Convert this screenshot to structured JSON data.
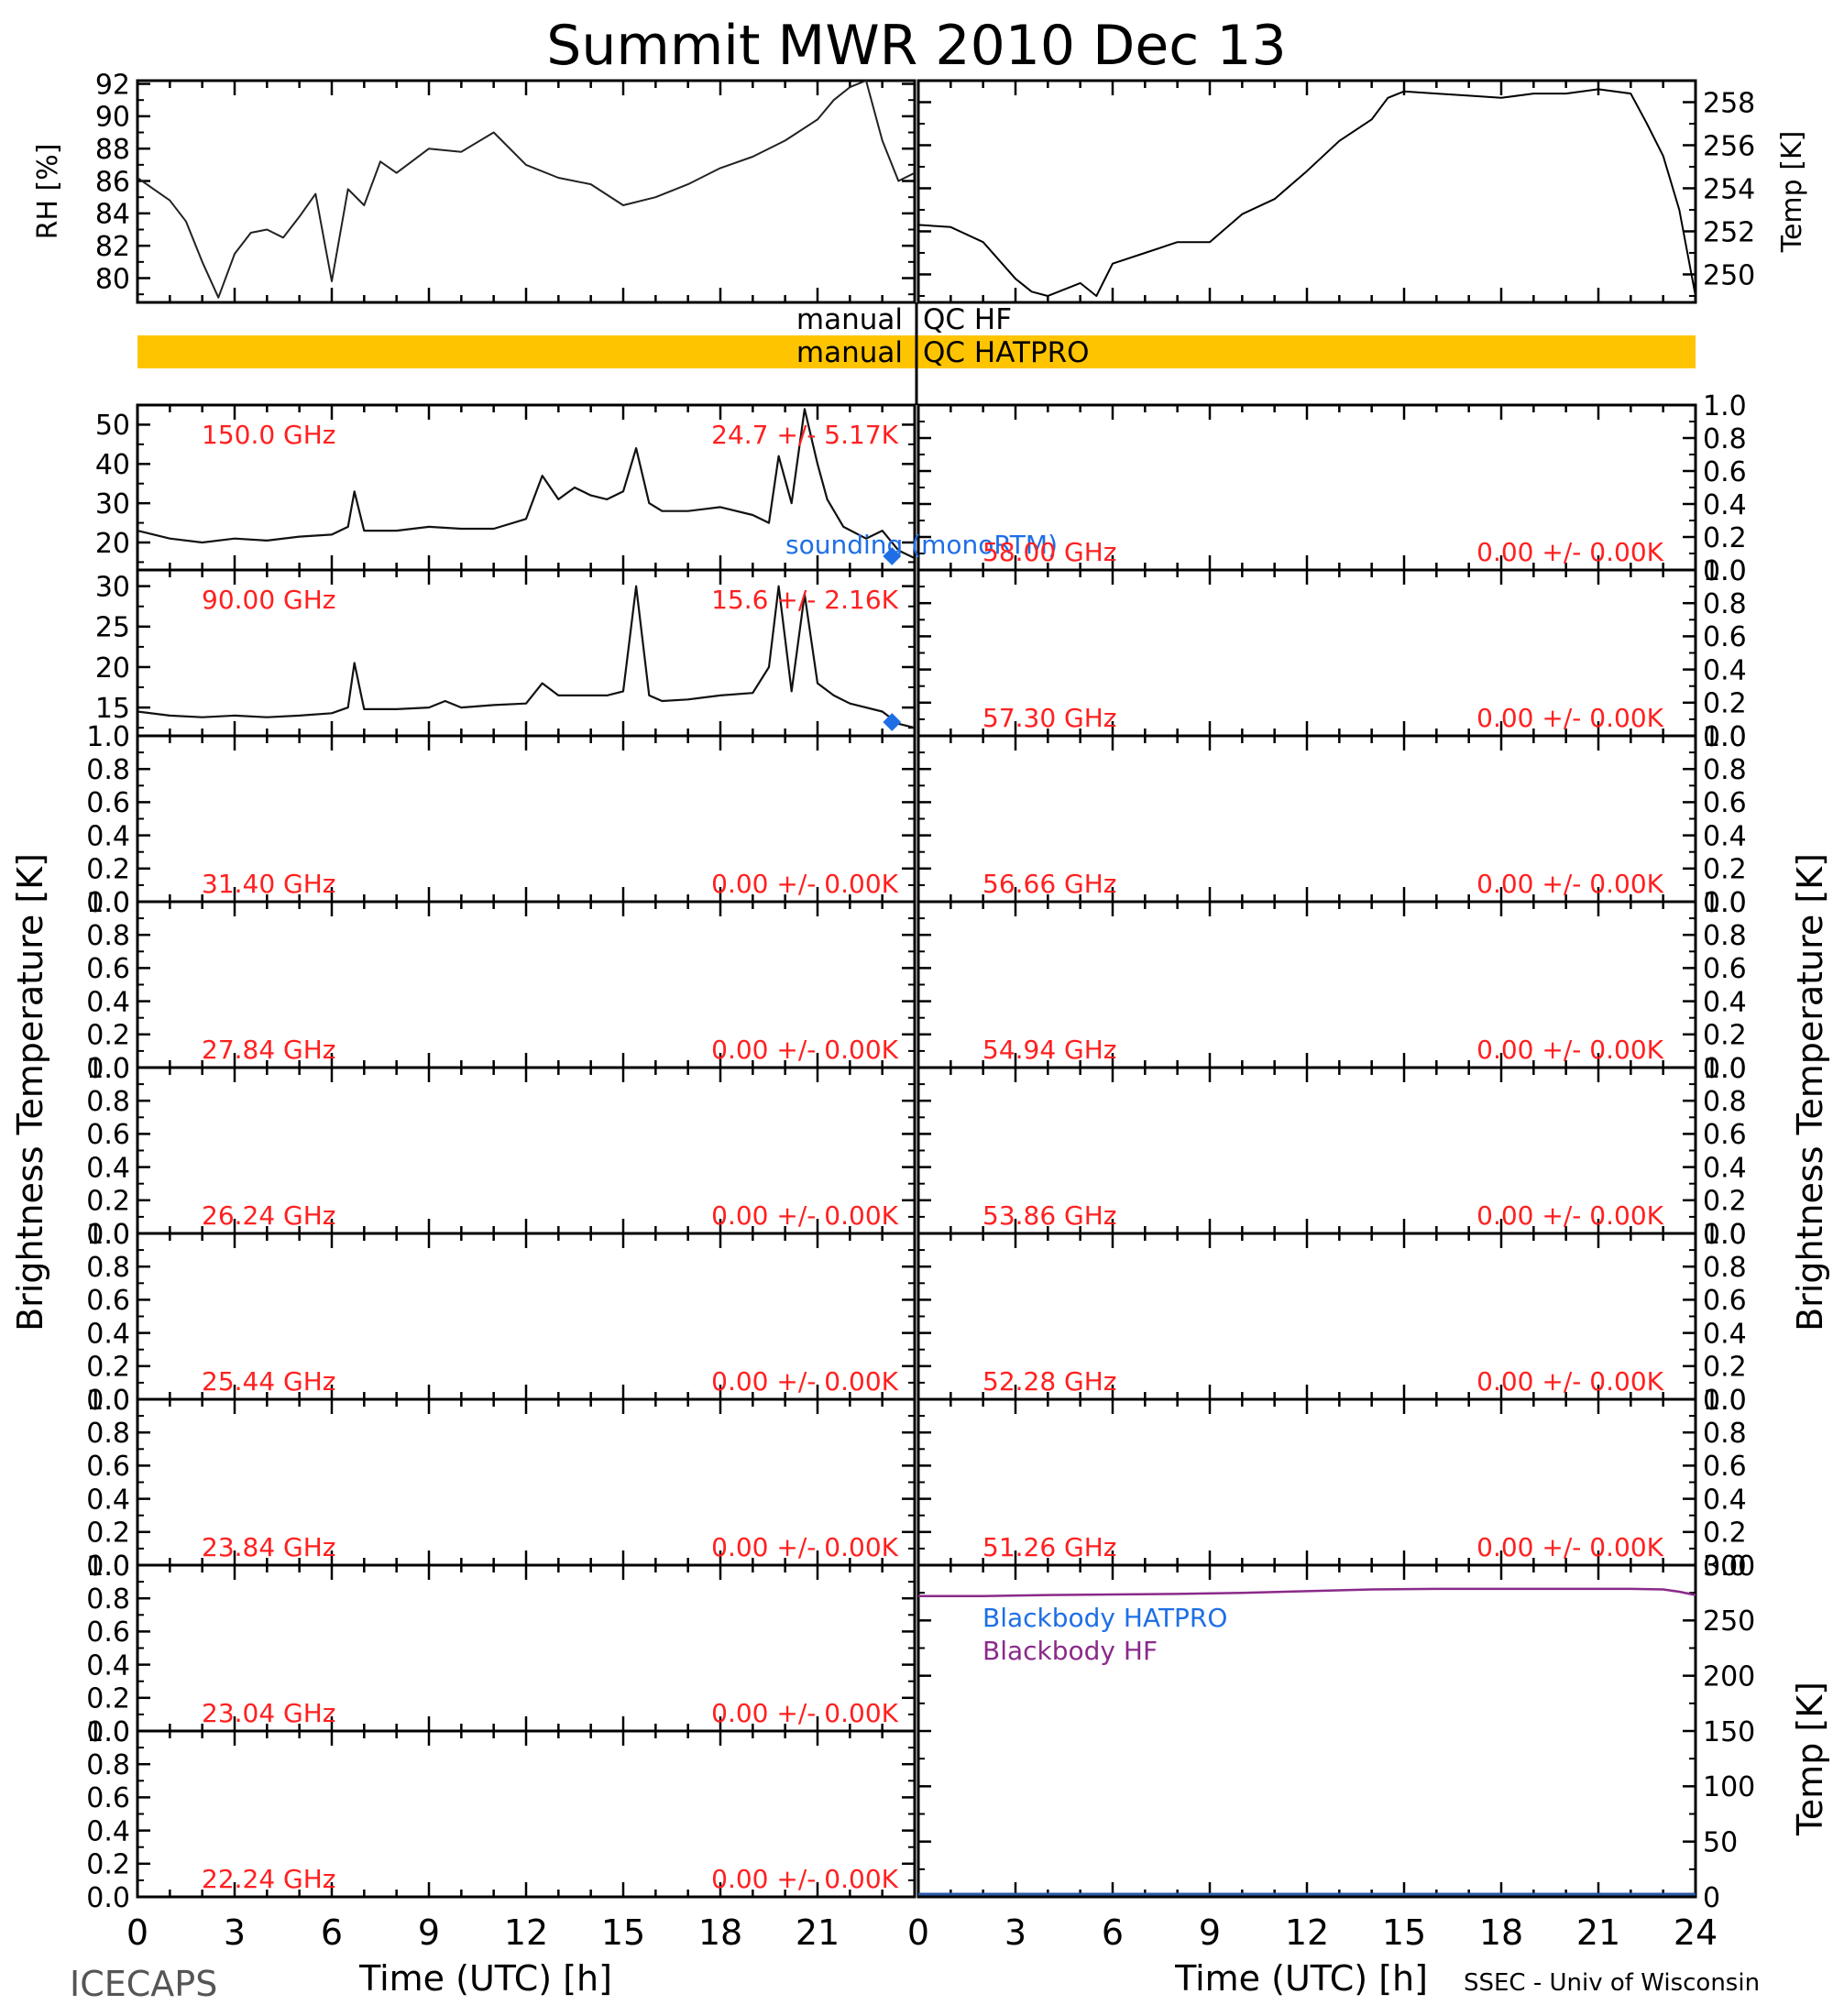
{
  "title": "Summit MWR 2010 Dec 13",
  "footer_left": "ICECAPS",
  "footer_right": "SSEC - Univ of Wisconsin",
  "colors": {
    "axis": "#000000",
    "freq_label": "#ff2020",
    "sounding": "#1e6fe6",
    "qc_bar": "#ffc400",
    "bb_hatpro": "#1e6fe6",
    "bb_hf": "#8a2a8a"
  },
  "qc": {
    "hf_label": "manual QC HF",
    "hatpro_label": "manual QC HATPRO"
  },
  "chart_data": [
    {
      "id": "rh",
      "type": "line",
      "ylabel": "RH [%]",
      "xlim": [
        0,
        24
      ],
      "ylim": [
        78.5,
        92.2
      ],
      "yticks": [
        80,
        82,
        84,
        86,
        88,
        90,
        92
      ],
      "x": [
        0,
        0.5,
        1,
        1.5,
        2,
        2.5,
        3,
        3.5,
        4,
        4.5,
        5,
        5.5,
        6,
        6.5,
        7,
        7.5,
        8,
        9,
        10,
        11,
        12,
        13,
        14,
        15,
        16,
        17,
        18,
        19,
        20,
        21,
        21.5,
        22,
        22.5,
        23,
        23.5,
        24
      ],
      "y": [
        86.2,
        85.5,
        84.8,
        83.5,
        81.0,
        78.8,
        81.5,
        82.8,
        83.0,
        82.5,
        83.8,
        85.2,
        79.8,
        85.5,
        84.5,
        87.2,
        86.5,
        88.0,
        87.8,
        89.0,
        87.0,
        86.2,
        85.8,
        84.5,
        85.0,
        85.8,
        86.8,
        87.5,
        88.5,
        89.8,
        91.0,
        91.8,
        92.2,
        88.5,
        86.0,
        86.5
      ]
    },
    {
      "id": "temp",
      "type": "line",
      "ylabel": "Temp [K]",
      "xlim": [
        0,
        24
      ],
      "ylim": [
        248.7,
        259.0
      ],
      "yticks": [
        250,
        252,
        254,
        256,
        258
      ],
      "x": [
        0,
        1,
        2,
        3,
        3.5,
        4,
        5,
        5.5,
        6,
        7,
        8,
        9,
        10,
        11,
        12,
        13,
        14,
        14.5,
        15,
        16,
        17,
        18,
        19,
        20,
        21,
        22,
        22.5,
        23,
        23.5,
        24
      ],
      "y": [
        252.3,
        252.2,
        251.5,
        249.8,
        249.2,
        249.0,
        249.6,
        249.0,
        250.5,
        251.0,
        251.5,
        251.5,
        252.8,
        253.5,
        254.8,
        256.2,
        257.2,
        258.2,
        258.5,
        258.4,
        258.3,
        258.2,
        258.4,
        258.4,
        258.6,
        258.4,
        257.0,
        255.5,
        253.0,
        249.0
      ]
    },
    {
      "id": "150ghz",
      "type": "line",
      "freq": "150.0 GHz",
      "stats": "24.7 +/- 5.17K",
      "xlim": [
        0,
        24
      ],
      "ylim": [
        13,
        55
      ],
      "yticks": [
        20,
        30,
        40,
        50
      ],
      "x": [
        0,
        1,
        2,
        3,
        4,
        5,
        6,
        6.5,
        6.7,
        7,
        8,
        9,
        10,
        11,
        12,
        12.5,
        13,
        13.5,
        14,
        14.5,
        15,
        15.4,
        15.8,
        16.2,
        17,
        18,
        19,
        19.5,
        19.8,
        20.2,
        20.6,
        21,
        21.3,
        21.8,
        22.5,
        23,
        23.5,
        24
      ],
      "y": [
        23,
        21,
        20,
        21,
        20.5,
        21.5,
        22,
        24,
        33,
        23,
        23,
        24,
        23.5,
        23.5,
        26,
        37,
        31,
        34,
        32,
        31,
        33,
        44,
        30,
        28,
        28,
        29,
        27,
        25,
        42,
        30,
        54,
        40,
        31,
        24,
        21,
        23,
        18,
        16
      ],
      "sounding_label": "sounding (monoRTM)",
      "sounding_points": [
        {
          "x": 23.3,
          "y": 16.5
        }
      ]
    },
    {
      "id": "90ghz",
      "type": "line",
      "freq": "90.00 GHz",
      "stats": "15.6 +/- 2.16K",
      "xlim": [
        0,
        24
      ],
      "ylim": [
        11.5,
        32
      ],
      "yticks": [
        15,
        20,
        25,
        30
      ],
      "x": [
        0,
        1,
        2,
        3,
        4,
        5,
        6,
        6.5,
        6.7,
        7,
        8,
        9,
        9.5,
        10,
        11,
        12,
        12.5,
        13,
        14,
        14.5,
        15,
        15.4,
        15.8,
        16.2,
        17,
        18,
        19,
        19.5,
        19.8,
        20.2,
        20.6,
        21,
        21.5,
        22,
        23,
        23.5,
        24
      ],
      "y": [
        14.5,
        14,
        13.8,
        14,
        13.8,
        14,
        14.3,
        15,
        20.5,
        14.8,
        14.8,
        15,
        15.8,
        15,
        15.3,
        15.5,
        18,
        16.5,
        16.5,
        16.5,
        17,
        30,
        16.5,
        15.8,
        16,
        16.5,
        16.8,
        20,
        30,
        17,
        29,
        18,
        16.5,
        15.5,
        14.5,
        13,
        12.5
      ],
      "sounding_points": [
        {
          "x": 23.3,
          "y": 13.2
        }
      ]
    },
    {
      "id": "31.40",
      "type": "line",
      "freq": "31.40 GHz",
      "stats": "0.00 +/- 0.00K",
      "xlim": [
        0,
        24
      ],
      "ylim": [
        0,
        1
      ],
      "yticks": [
        0.0,
        0.2,
        0.4,
        0.6,
        0.8,
        1.0
      ],
      "x": [],
      "y": []
    },
    {
      "id": "27.84",
      "type": "line",
      "freq": "27.84 GHz",
      "stats": "0.00 +/- 0.00K",
      "xlim": [
        0,
        24
      ],
      "ylim": [
        0,
        1
      ],
      "yticks": [
        0.0,
        0.2,
        0.4,
        0.6,
        0.8,
        1.0
      ],
      "x": [],
      "y": []
    },
    {
      "id": "26.24",
      "type": "line",
      "freq": "26.24 GHz",
      "stats": "0.00 +/- 0.00K",
      "xlim": [
        0,
        24
      ],
      "ylim": [
        0,
        1
      ],
      "yticks": [
        0.0,
        0.2,
        0.4,
        0.6,
        0.8,
        1.0
      ],
      "x": [],
      "y": []
    },
    {
      "id": "25.44",
      "type": "line",
      "freq": "25.44 GHz",
      "stats": "0.00 +/- 0.00K",
      "xlim": [
        0,
        24
      ],
      "ylim": [
        0,
        1
      ],
      "yticks": [
        0.0,
        0.2,
        0.4,
        0.6,
        0.8,
        1.0
      ],
      "x": [],
      "y": []
    },
    {
      "id": "23.84",
      "type": "line",
      "freq": "23.84 GHz",
      "stats": "0.00 +/- 0.00K",
      "xlim": [
        0,
        24
      ],
      "ylim": [
        0,
        1
      ],
      "yticks": [
        0.0,
        0.2,
        0.4,
        0.6,
        0.8,
        1.0
      ],
      "x": [],
      "y": []
    },
    {
      "id": "23.04",
      "type": "line",
      "freq": "23.04 GHz",
      "stats": "0.00 +/- 0.00K",
      "xlim": [
        0,
        24
      ],
      "ylim": [
        0,
        1
      ],
      "yticks": [
        0.0,
        0.2,
        0.4,
        0.6,
        0.8,
        1.0
      ],
      "x": [],
      "y": []
    },
    {
      "id": "22.24",
      "type": "line",
      "freq": "22.24 GHz",
      "stats": "0.00 +/- 0.00K",
      "xlim": [
        0,
        24
      ],
      "ylim": [
        0,
        1
      ],
      "yticks": [
        0.0,
        0.2,
        0.4,
        0.6,
        0.8,
        1.0
      ],
      "x": [],
      "y": []
    },
    {
      "id": "58.00",
      "type": "line",
      "freq": "58.00 GHz",
      "stats": "0.00 +/- 0.00K",
      "xlim": [
        0,
        24
      ],
      "ylim": [
        0,
        1
      ],
      "yticks": [
        0.0,
        0.2,
        0.4,
        0.6,
        0.8,
        1.0
      ],
      "x": [],
      "y": []
    },
    {
      "id": "57.30",
      "type": "line",
      "freq": "57.30 GHz",
      "stats": "0.00 +/- 0.00K",
      "xlim": [
        0,
        24
      ],
      "ylim": [
        0,
        1
      ],
      "yticks": [
        0.0,
        0.2,
        0.4,
        0.6,
        0.8,
        1.0
      ],
      "x": [],
      "y": []
    },
    {
      "id": "56.66",
      "type": "line",
      "freq": "56.66 GHz",
      "stats": "0.00 +/- 0.00K",
      "xlim": [
        0,
        24
      ],
      "ylim": [
        0,
        1
      ],
      "yticks": [
        0.0,
        0.2,
        0.4,
        0.6,
        0.8,
        1.0
      ],
      "x": [],
      "y": []
    },
    {
      "id": "54.94",
      "type": "line",
      "freq": "54.94 GHz",
      "stats": "0.00 +/- 0.00K",
      "xlim": [
        0,
        24
      ],
      "ylim": [
        0,
        1
      ],
      "yticks": [
        0.0,
        0.2,
        0.4,
        0.6,
        0.8,
        1.0
      ],
      "x": [],
      "y": []
    },
    {
      "id": "53.86",
      "type": "line",
      "freq": "53.86 GHz",
      "stats": "0.00 +/- 0.00K",
      "xlim": [
        0,
        24
      ],
      "ylim": [
        0,
        1
      ],
      "yticks": [
        0.0,
        0.2,
        0.4,
        0.6,
        0.8,
        1.0
      ],
      "x": [],
      "y": []
    },
    {
      "id": "52.28",
      "type": "line",
      "freq": "52.28 GHz",
      "stats": "0.00 +/- 0.00K",
      "xlim": [
        0,
        24
      ],
      "ylim": [
        0,
        1
      ],
      "yticks": [
        0.0,
        0.2,
        0.4,
        0.6,
        0.8,
        1.0
      ],
      "x": [],
      "y": []
    },
    {
      "id": "51.26",
      "type": "line",
      "freq": "51.26 GHz",
      "stats": "0.00 +/- 0.00K",
      "xlim": [
        0,
        24
      ],
      "ylim": [
        0,
        1
      ],
      "yticks": [
        0.0,
        0.2,
        0.4,
        0.6,
        0.8,
        1.0
      ],
      "x": [],
      "y": []
    },
    {
      "id": "blackbody",
      "type": "line",
      "ylabel": "Temp [K]",
      "xlim": [
        0,
        24
      ],
      "ylim": [
        0,
        300
      ],
      "yticks": [
        0,
        50,
        100,
        150,
        200,
        250,
        300
      ],
      "series": [
        {
          "name": "Blackbody HATPRO",
          "x": [],
          "y": []
        },
        {
          "name": "Blackbody HF",
          "x": [
            0,
            2,
            4,
            6,
            8,
            10,
            12,
            14,
            16,
            18,
            20,
            22,
            23,
            23.5,
            24
          ],
          "y": [
            272,
            272,
            273,
            273.5,
            274,
            275,
            276.5,
            278,
            278.5,
            278.5,
            278.5,
            278.5,
            278,
            276,
            273
          ]
        }
      ]
    }
  ],
  "axes": {
    "left_ylabel": "Brightness Temperature [K]",
    "right_ylabel": "Brightness Temperature [K]",
    "xlabel_left": "Time (UTC) [h]",
    "xlabel_right": "Time (UTC) [h]",
    "xticks_left": [
      "0",
      "3",
      "6",
      "9",
      "12",
      "15",
      "18",
      "21"
    ],
    "xticks_right": [
      "0",
      "3",
      "6",
      "9",
      "12",
      "15",
      "18",
      "21",
      "24"
    ]
  }
}
